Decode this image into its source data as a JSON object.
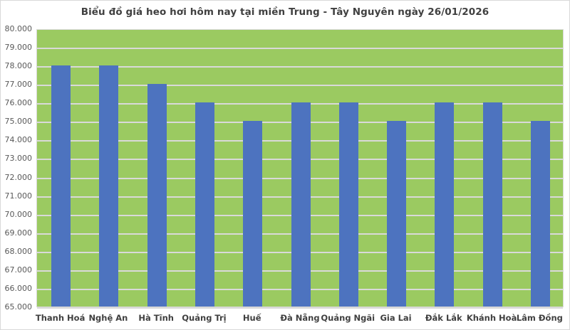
{
  "chart_data": {
    "type": "bar",
    "title": "Biểu đồ giá heo hơi hôm nay tại miền Trung - Tây Nguyên ngày 26/01/2026",
    "categories": [
      "Thanh Hoá",
      "Nghệ An",
      "Hà Tĩnh",
      "Quảng Trị",
      "Huế",
      "Đà Nẵng",
      "Quảng Ngãi",
      "Gia Lai",
      "Đắk Lắk",
      "Khánh Hoà",
      "Lâm Đồng"
    ],
    "values": [
      78000,
      78000,
      77000,
      76000,
      75000,
      76000,
      76000,
      75000,
      76000,
      76000,
      75000
    ],
    "xlabel": "",
    "ylabel": "",
    "ylim": [
      65000,
      80000
    ],
    "y_tick_step": 1000,
    "y_tick_labels": [
      "80.000",
      "79.000",
      "78.000",
      "77.000",
      "76.000",
      "75.000",
      "74.000",
      "73.000",
      "72.000",
      "71.000",
      "70.000",
      "69.000",
      "68.000",
      "67.000",
      "66.000",
      "65.000"
    ],
    "grid": true,
    "legend": "none",
    "colors": {
      "bar": "#4d73bf",
      "plot_background": "#9bca61",
      "gridline": "#d9d9d9",
      "title_text": "#404040",
      "tick_text": "#595959",
      "category_text": "#404040",
      "background": "#ffffff",
      "border": "#d9d9d9"
    }
  }
}
